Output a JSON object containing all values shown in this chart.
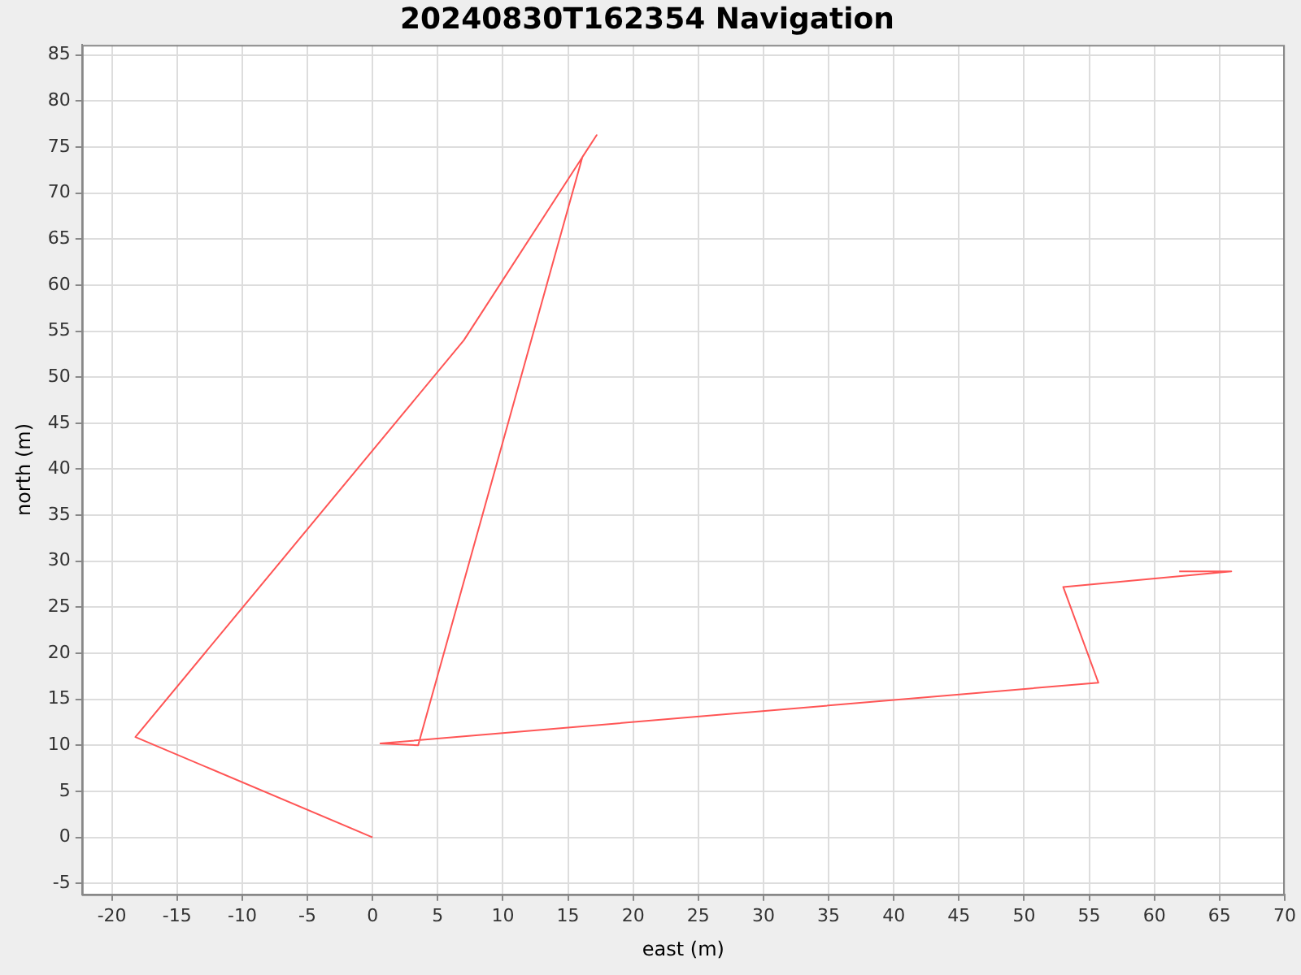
{
  "chart_data": {
    "type": "line",
    "title": "20240830T162354 Navigation",
    "xlabel": "east (m)",
    "ylabel": "north (m)",
    "series": [
      {
        "color": "#ff5555",
        "x": [
          0,
          -18.2,
          7,
          17.2,
          16.1,
          3.5,
          0.6,
          55.7,
          53,
          65.9,
          61.9
        ],
        "values": [
          0,
          10.9,
          54,
          76.3,
          73.9,
          10,
          10.2,
          16.8,
          27.2,
          28.9,
          28.9
        ]
      }
    ],
    "xlim": [
      -22.3,
      70
    ],
    "xticks": [
      -20,
      -15,
      -10,
      -5,
      0,
      5,
      10,
      15,
      20,
      25,
      30,
      35,
      40,
      45,
      50,
      55,
      60,
      65,
      70
    ],
    "ylim": [
      -6.2,
      86.1
    ],
    "yticks": [
      -5,
      0,
      5,
      10,
      15,
      20,
      25,
      30,
      35,
      40,
      45,
      50,
      55,
      60,
      65,
      70,
      75,
      80,
      85
    ],
    "grid": true,
    "legend": false,
    "marker": "none",
    "line_style": "solid"
  }
}
